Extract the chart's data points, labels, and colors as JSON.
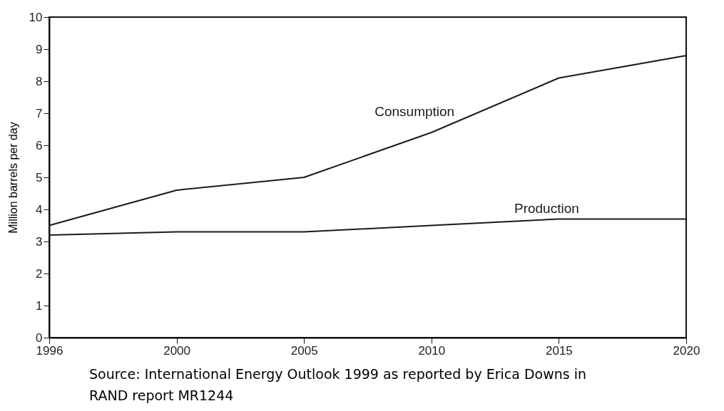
{
  "chart_data": {
    "type": "line",
    "ylabel": "Million barrels per day",
    "categories": [
      "1996",
      "2000",
      "2005",
      "2010",
      "2015",
      "2020"
    ],
    "ylim": [
      0,
      10
    ],
    "yticks": [
      0,
      1,
      2,
      3,
      4,
      5,
      6,
      7,
      8,
      9,
      10
    ],
    "series": [
      {
        "name": "Consumption",
        "color": "#1a1a1a",
        "values": [
          3.5,
          4.6,
          5.0,
          6.4,
          8.1,
          8.8
        ]
      },
      {
        "name": "Production",
        "color": "#1a1a1a",
        "values": [
          3.2,
          3.3,
          3.3,
          3.5,
          3.7,
          3.7
        ]
      }
    ],
    "grid": false,
    "legend": false,
    "marker": "none",
    "line_style": "solid",
    "annotations": [
      "Source: International Energy Outlook 1999 as reported by Erica Downs in RAND report MR1244"
    ]
  }
}
